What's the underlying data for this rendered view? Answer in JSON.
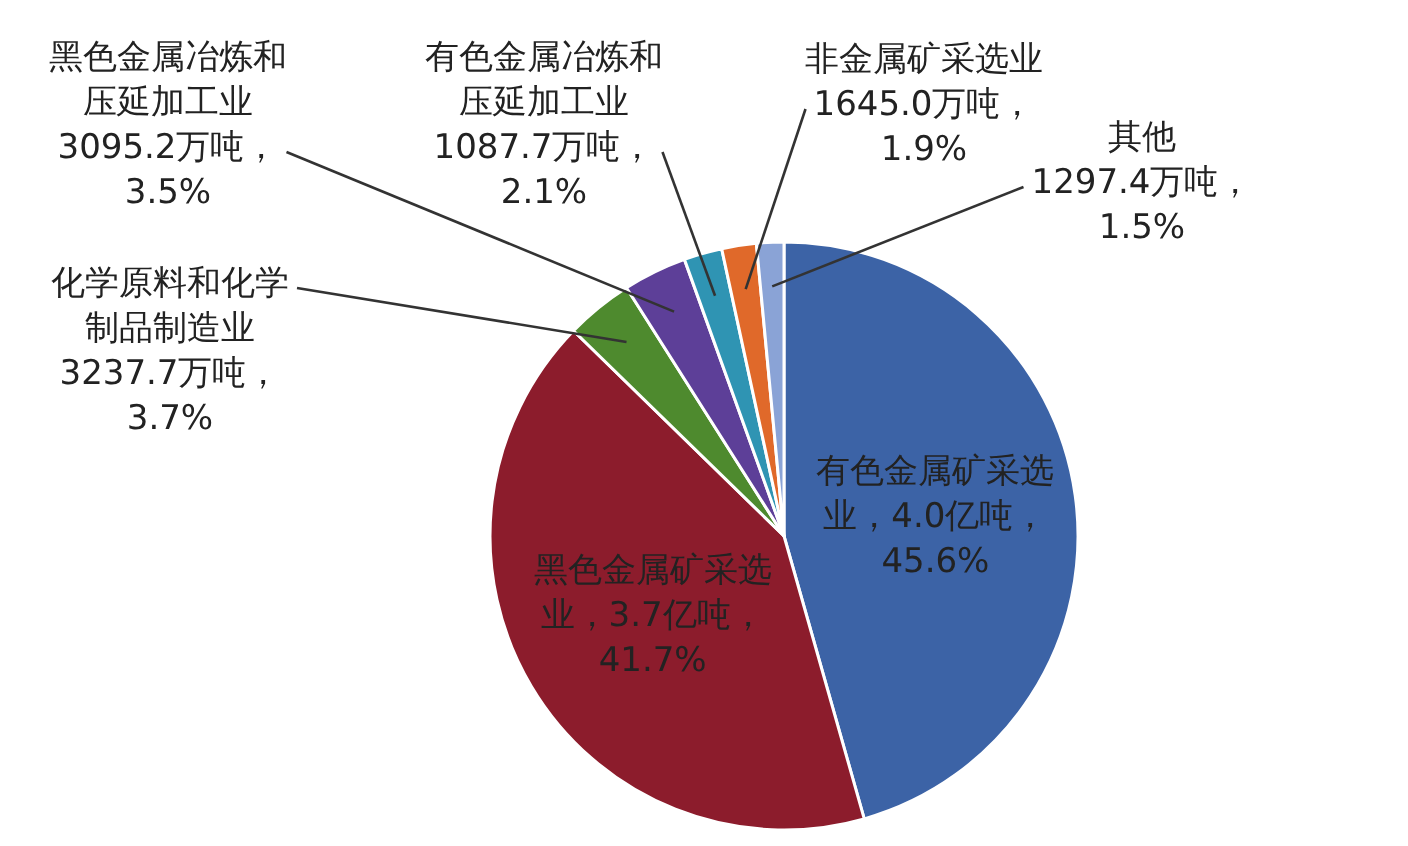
{
  "chart_data": {
    "type": "pie",
    "categories": [
      "有色金属矿采选业",
      "黑色金属矿采选业",
      "化学原料和化学制品制造业",
      "黑色金属冶炼和压延加工业",
      "有色金属冶炼和压延加工业",
      "非金属矿采选业",
      "其他"
    ],
    "values": [
      45.6,
      41.7,
      3.7,
      3.5,
      2.1,
      1.9,
      1.5
    ],
    "colors": [
      "#3c63a6",
      "#8c1c2c",
      "#4e8a2e",
      "#5d3f98",
      "#2f94b3",
      "#e0692a",
      "#8aa3d6"
    ],
    "value_labels": [
      "4.0亿吨，45.6%",
      "3.7亿吨，41.7%",
      "3237.7万吨，3.7%",
      "3095.2万吨，3.5%",
      "1087.7万吨，2.1%",
      "1645.0万吨，1.9%",
      "1297.4万吨，1.5%"
    ]
  }
}
